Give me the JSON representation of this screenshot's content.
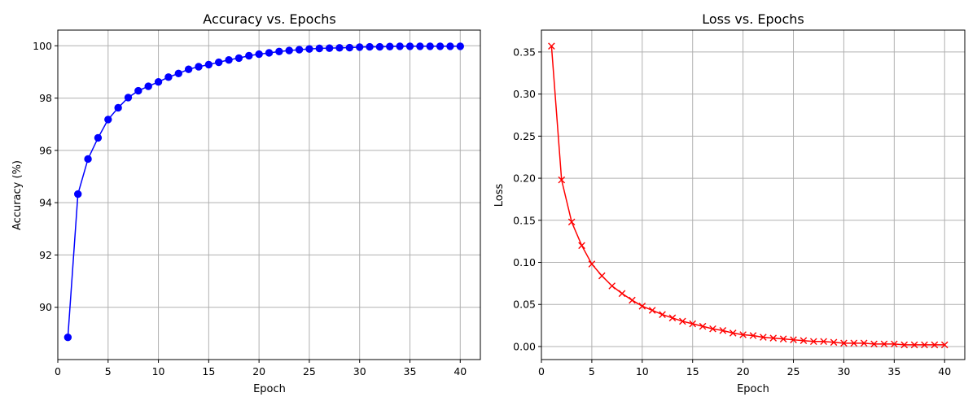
{
  "chart_data": [
    {
      "type": "line",
      "title": "Accuracy vs. Epochs",
      "xlabel": "Epoch",
      "ylabel": "Accuracy (%)",
      "xlim": [
        0,
        42
      ],
      "ylim": [
        88.0,
        100.6
      ],
      "xticks": [
        0,
        5,
        10,
        15,
        20,
        25,
        30,
        35,
        40
      ],
      "yticks": [
        90,
        92,
        94,
        96,
        98,
        100
      ],
      "grid": true,
      "color": "#0000ff",
      "marker": "circle",
      "series": [
        {
          "x": [
            1,
            2,
            3,
            4,
            5,
            6,
            7,
            8,
            9,
            10,
            11,
            12,
            13,
            14,
            15,
            16,
            17,
            18,
            19,
            20,
            21,
            22,
            23,
            24,
            25,
            26,
            27,
            28,
            29,
            30,
            31,
            32,
            33,
            34,
            35,
            36,
            37,
            38,
            39,
            40
          ],
          "values": [
            88.85,
            94.33,
            95.67,
            96.48,
            97.18,
            97.63,
            98.02,
            98.28,
            98.45,
            98.62,
            98.8,
            98.94,
            99.1,
            99.2,
            99.28,
            99.37,
            99.46,
            99.53,
            99.62,
            99.68,
            99.73,
            99.78,
            99.82,
            99.85,
            99.88,
            99.9,
            99.91,
            99.92,
            99.93,
            99.95,
            99.96,
            99.96,
            99.97,
            99.98,
            99.98,
            99.98,
            99.98,
            99.98,
            99.98,
            99.98
          ]
        }
      ]
    },
    {
      "type": "line",
      "title": "Loss vs. Epochs",
      "xlabel": "Epoch",
      "ylabel": "Loss",
      "xlim": [
        0,
        42
      ],
      "ylim": [
        -0.0155,
        0.376
      ],
      "xticks": [
        0,
        5,
        10,
        15,
        20,
        25,
        30,
        35,
        40
      ],
      "yticks": [
        0.0,
        0.05,
        0.1,
        0.15,
        0.2,
        0.25,
        0.3,
        0.35
      ],
      "yticks_format": 2,
      "grid": true,
      "color": "#ff0000",
      "marker": "x",
      "series": [
        {
          "x": [
            1,
            2,
            3,
            4,
            5,
            6,
            7,
            8,
            9,
            10,
            11,
            12,
            13,
            14,
            15,
            16,
            17,
            18,
            19,
            20,
            21,
            22,
            23,
            24,
            25,
            26,
            27,
            28,
            29,
            30,
            31,
            32,
            33,
            34,
            35,
            36,
            37,
            38,
            39,
            40
          ],
          "values": [
            0.357,
            0.198,
            0.148,
            0.12,
            0.098,
            0.084,
            0.072,
            0.063,
            0.055,
            0.048,
            0.043,
            0.038,
            0.034,
            0.03,
            0.027,
            0.024,
            0.021,
            0.019,
            0.016,
            0.014,
            0.013,
            0.011,
            0.01,
            0.009,
            0.008,
            0.007,
            0.006,
            0.006,
            0.005,
            0.004,
            0.004,
            0.004,
            0.003,
            0.003,
            0.003,
            0.002,
            0.002,
            0.002,
            0.002,
            0.002
          ]
        }
      ]
    }
  ]
}
